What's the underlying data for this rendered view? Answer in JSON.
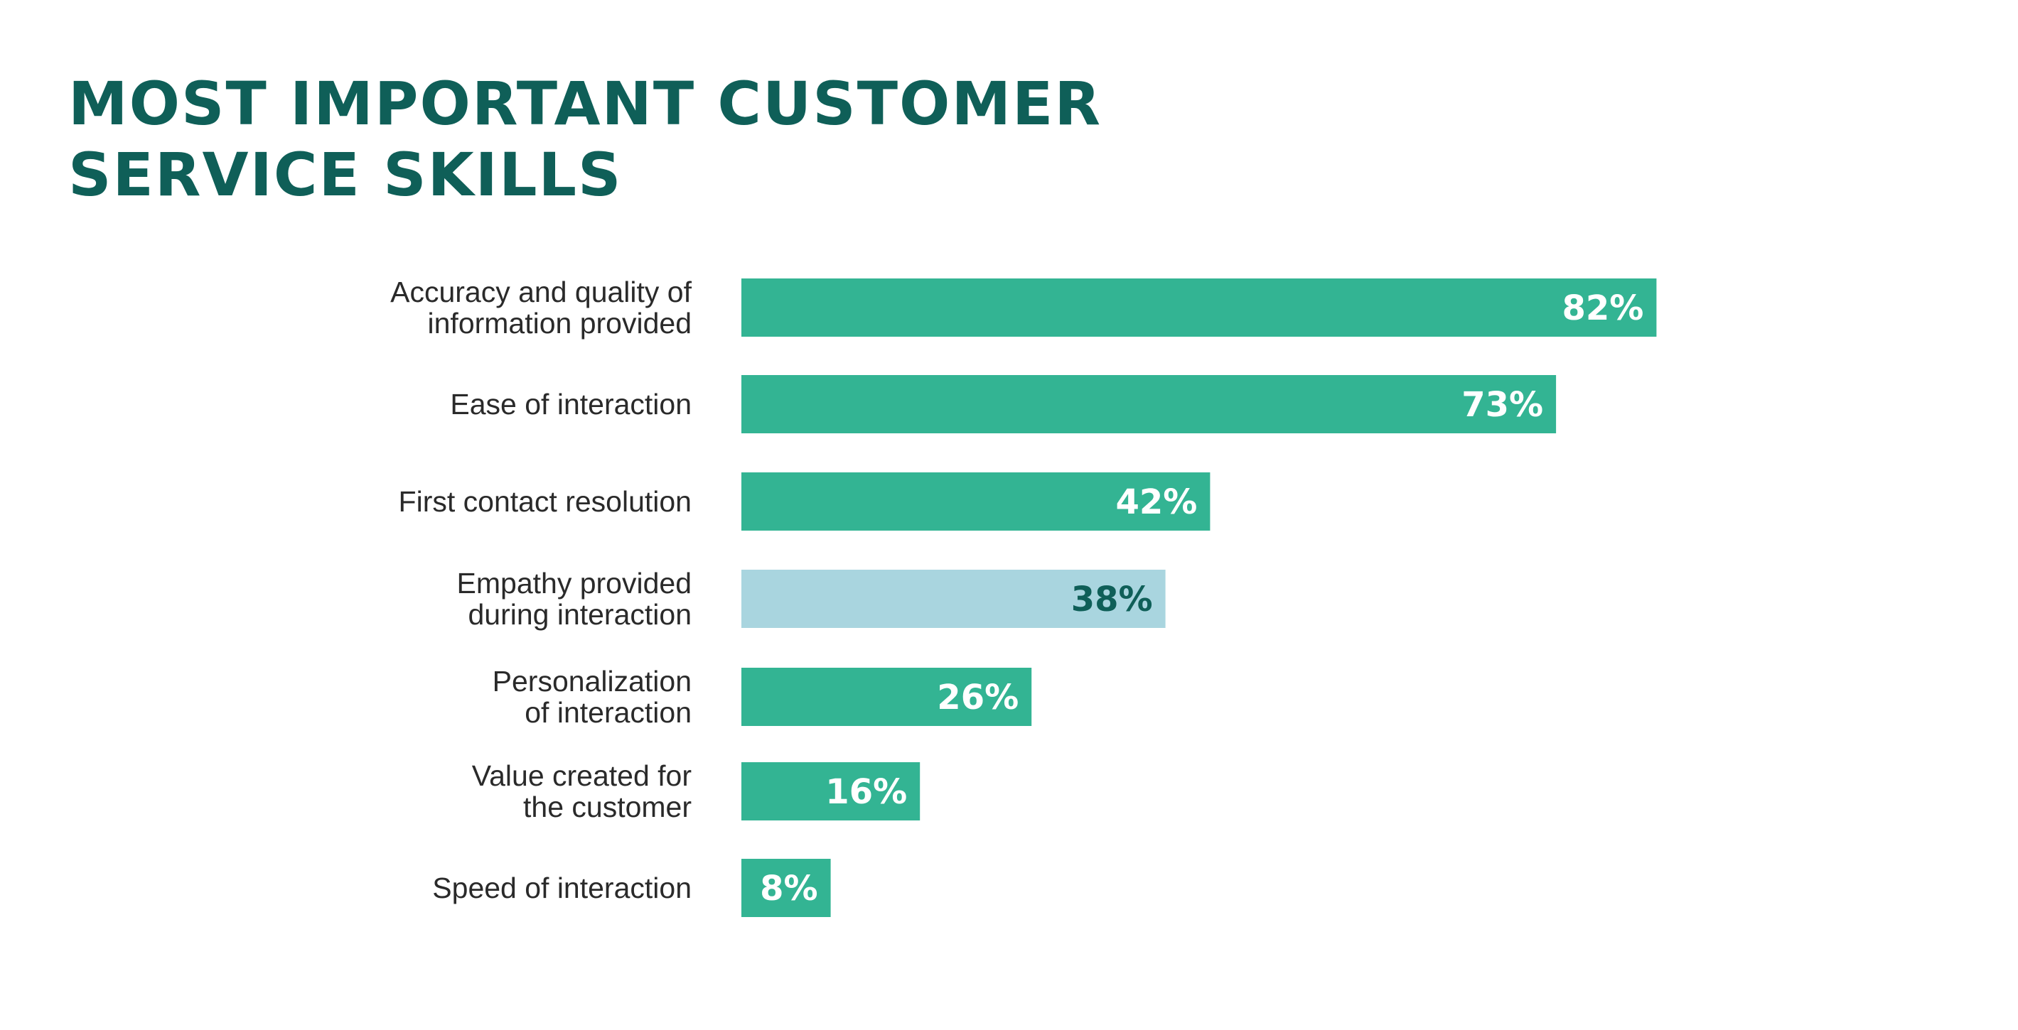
{
  "colors": {
    "title": "#0f5f58",
    "bar": "#33b493",
    "bar_highlight": "#a9d5df",
    "value_text": "#ffffff",
    "value_text_highlight": "#0f5f58",
    "category_text": "#2a2a2a"
  },
  "chart_data": {
    "type": "bar",
    "orientation": "horizontal",
    "title": "MOST IMPORTANT CUSTOMER\nSERVICE SKILLS",
    "categories": [
      [
        "Accuracy and quality of",
        "information provided"
      ],
      [
        "Ease of interaction"
      ],
      [
        "First contact resolution"
      ],
      [
        "Empathy provided",
        "during interaction"
      ],
      [
        "Personalization",
        "of interaction"
      ],
      [
        "Value created for",
        "the customer"
      ],
      [
        "Speed of interaction"
      ]
    ],
    "values": [
      82,
      73,
      42,
      38,
      26,
      16,
      8
    ],
    "value_labels": [
      "82%",
      "73%",
      "42%",
      "38%",
      "26%",
      "16%",
      "8%"
    ],
    "highlight_index": 3,
    "unit": "%",
    "xlim": [
      0,
      100
    ],
    "grid": false,
    "legend": "none"
  }
}
